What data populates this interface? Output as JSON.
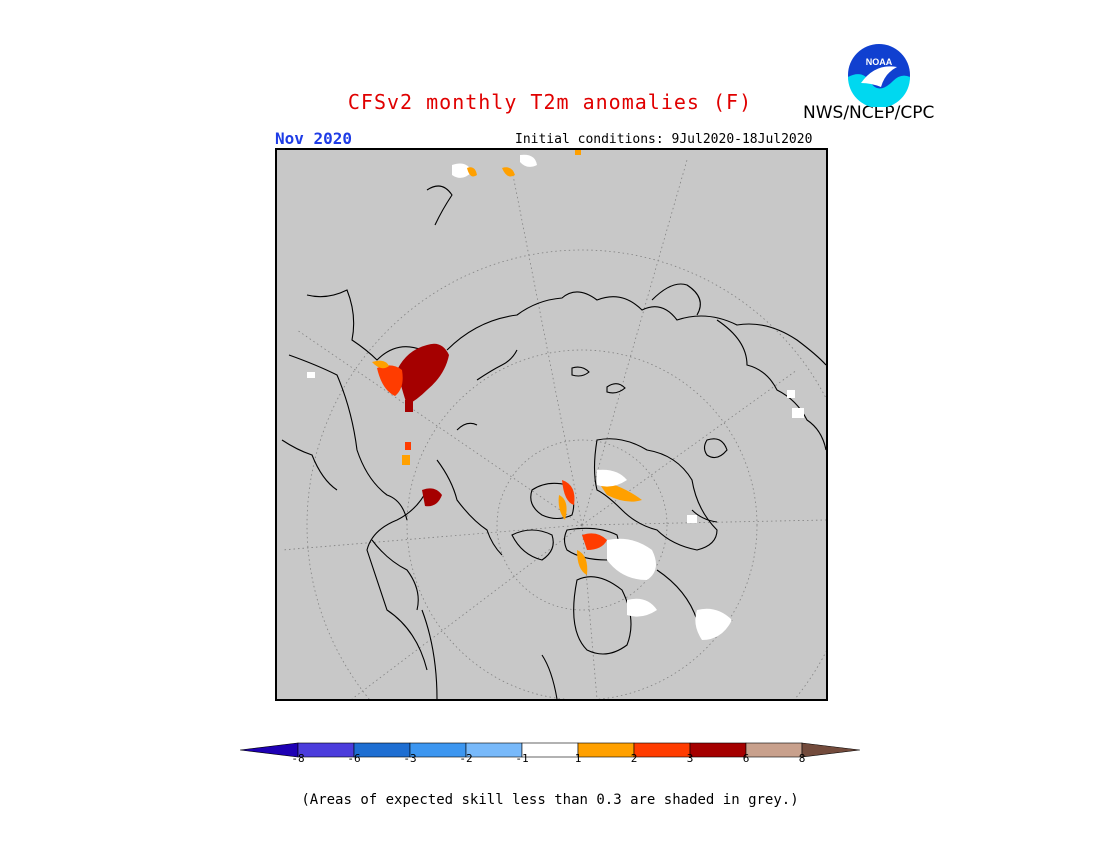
{
  "header": {
    "title": "CFSv2 monthly T2m anomalies (F)",
    "month": "Nov 2020",
    "initial_conditions": "Initial conditions: 9Jul2020-18Jul2020",
    "agency": "NWS/NCEP/CPC",
    "logo_text": "NOAA"
  },
  "map": {
    "projection": "north-polar-stereographic",
    "background_color": "#c8c8c8",
    "anomaly_colors": {
      "plus_1_2": "#ffa000",
      "plus_2_3": "#ff3c00",
      "plus_3_6": "#a50000",
      "minus_1_plus_1": "#ffffff"
    }
  },
  "legend": {
    "colors": [
      "#1e00b4",
      "#4b3cdc",
      "#1e6ed2",
      "#3c96f0",
      "#78b9fa",
      "#ffffff",
      "#ffa000",
      "#ff3c00",
      "#a50000",
      "#c8a08c",
      "#734b3c"
    ],
    "ticks": [
      "-8",
      "-6",
      "-3",
      "-2",
      "-1",
      "1",
      "2",
      "3",
      "6",
      "8"
    ]
  },
  "footnote": "(Areas of expected skill less than 0.3 are shaded in grey.)"
}
